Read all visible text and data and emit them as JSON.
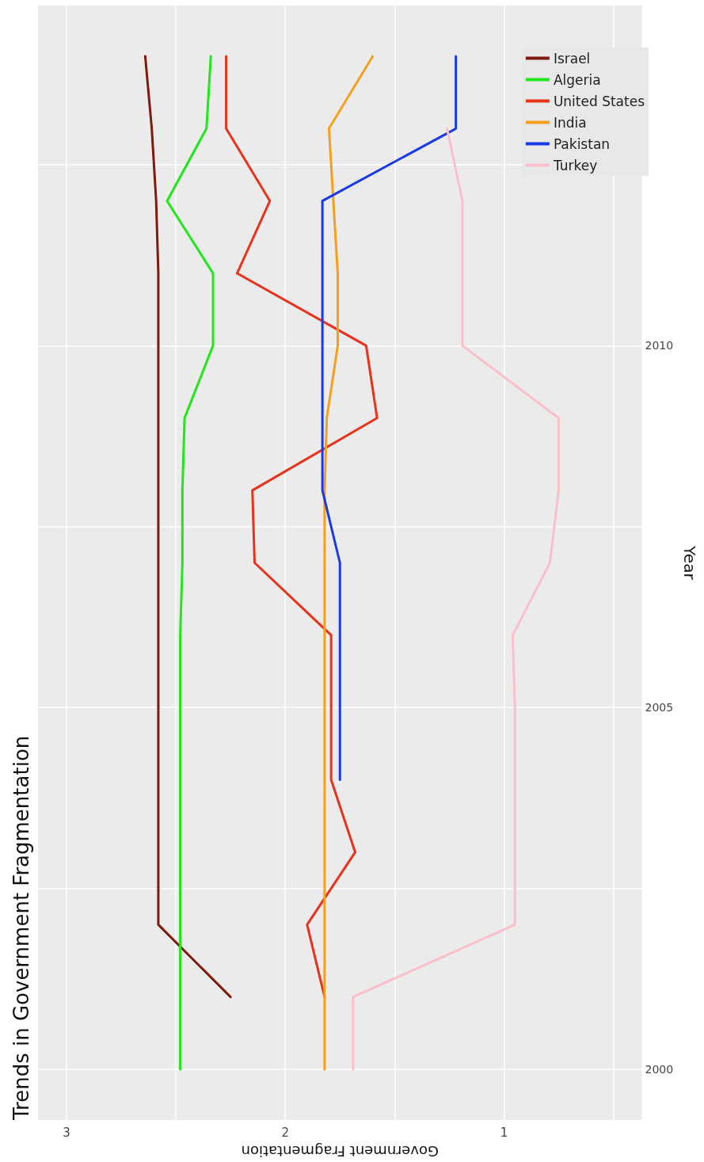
{
  "chart_data": {
    "type": "line",
    "title": "Trends in Government Fragmentation",
    "xlabel": "Government Fragmentation",
    "ylabel": "Year",
    "xlim": [
      3.13,
      0.37
    ],
    "xticks": [
      3,
      {
        "value": 2.5,
        "label": null
      },
      2,
      {
        "value": 1.5,
        "label": null
      },
      1,
      {
        "value": 0.5,
        "label": null
      }
    ],
    "ylim": [
      1999.3,
      2014.7
    ],
    "yticks": [
      2000,
      {
        "value": 2002.5,
        "label": null
      },
      2005,
      {
        "value": 2007.5,
        "label": null
      },
      2010,
      {
        "value": 2012.5,
        "label": null
      }
    ],
    "grid": true,
    "legend": "top right",
    "marker": "none",
    "line_style": "solid",
    "series": [
      {
        "name": "Israel",
        "color": "#7f1a0f",
        "x": [
          2.25,
          2.58,
          2.58,
          2.58,
          2.58,
          2.58,
          2.58,
          2.58,
          2.58,
          2.58,
          2.58,
          2.59,
          2.61,
          2.64
        ],
        "values": [
          2001,
          2002,
          2003,
          2004,
          2005,
          2006,
          2007,
          2008,
          2009,
          2010,
          2011,
          2012,
          2013,
          2014
        ]
      },
      {
        "name": "Algeria",
        "color": "#22e61a",
        "x": [
          2.48,
          2.48,
          2.48,
          2.48,
          2.48,
          2.48,
          2.48,
          2.47,
          2.47,
          2.46,
          2.33,
          2.33,
          2.54,
          2.36,
          2.34
        ],
        "values": [
          2000,
          2001,
          2002,
          2003,
          2004,
          2005,
          2006,
          2007,
          2008,
          2009,
          2010,
          2011,
          2012,
          2013,
          2014
        ]
      },
      {
        "name": "United States",
        "color": "#e8321c",
        "x": [
          1.82,
          1.9,
          1.68,
          1.79,
          1.79,
          1.79,
          2.14,
          2.15,
          1.58,
          1.63,
          2.22,
          2.07,
          2.27,
          2.27
        ],
        "values": [
          2001,
          2002,
          2003,
          2004,
          2005,
          2006,
          2007,
          2008,
          2009,
          2010,
          2011,
          2012,
          2013,
          2014
        ]
      },
      {
        "name": "India",
        "color": "#f5a01d",
        "x": [
          1.82,
          1.82,
          1.82,
          1.82,
          1.82,
          1.82,
          1.82,
          1.82,
          1.82,
          1.81,
          1.76,
          1.76,
          1.78,
          1.8,
          1.6
        ],
        "values": [
          2000,
          2001,
          2002,
          2003,
          2004,
          2005,
          2006,
          2007,
          2008,
          2009,
          2010,
          2011,
          2012,
          2013,
          2014
        ]
      },
      {
        "name": "Pakistan",
        "color": "#1a3ae6",
        "x": [
          1.75,
          1.75,
          1.75,
          1.75,
          1.83,
          1.83,
          1.83,
          1.83,
          1.83,
          1.22,
          1.22
        ],
        "values": [
          2004,
          2005,
          2006,
          2007,
          2008,
          2009,
          2010,
          2011,
          2012,
          2013,
          2014
        ]
      },
      {
        "name": "Turkey",
        "color": "#f9c0cb",
        "x": [
          1.69,
          1.69,
          0.95,
          0.95,
          0.95,
          0.95,
          0.96,
          0.79,
          0.75,
          0.75,
          1.19,
          1.19,
          1.19,
          1.26
        ],
        "values": [
          2000,
          2001,
          2002,
          2003,
          2004,
          2005,
          2006,
          2007,
          2008,
          2009,
          2010,
          2011,
          2012,
          2013
        ]
      }
    ]
  }
}
